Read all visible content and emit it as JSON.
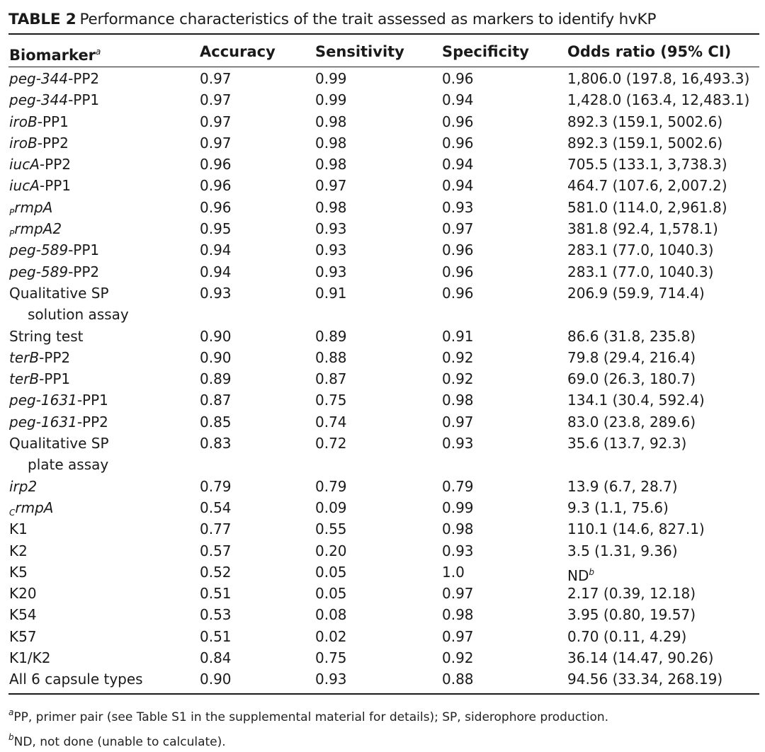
{
  "caption": {
    "label": "TABLE 2",
    "text": "Performance characteristics of the trait assessed as markers to identify hvKP"
  },
  "header": {
    "biomarker": "Biomarker",
    "biomarker_footnote": "a",
    "accuracy": "Accuracy",
    "sensitivity": "Sensitivity",
    "specificity": "Specificity",
    "odds_ratio": "Odds ratio (95% CI)"
  },
  "rows": [
    {
      "pre": "",
      "italic": "peg-344",
      "suffix": "-PP2",
      "cont": "",
      "accuracy": "0.97",
      "sensitivity": "0.99",
      "specificity": "0.96",
      "odds": "1,806.0 (197.8, 16,493.3)",
      "odds_fn": ""
    },
    {
      "pre": "",
      "italic": "peg-344",
      "suffix": "-PP1",
      "cont": "",
      "accuracy": "0.97",
      "sensitivity": "0.99",
      "specificity": "0.94",
      "odds": "1,428.0 (163.4, 12,483.1)",
      "odds_fn": ""
    },
    {
      "pre": "",
      "italic": "iroB",
      "suffix": "-PP1",
      "cont": "",
      "accuracy": "0.97",
      "sensitivity": "0.98",
      "specificity": "0.96",
      "odds": "892.3 (159.1, 5002.6)",
      "odds_fn": ""
    },
    {
      "pre": "",
      "italic": "iroB",
      "suffix": "-PP2",
      "cont": "",
      "accuracy": "0.97",
      "sensitivity": "0.98",
      "specificity": "0.96",
      "odds": "892.3 (159.1, 5002.6)",
      "odds_fn": ""
    },
    {
      "pre": "",
      "italic": "iucA",
      "suffix": "-PP2",
      "cont": "",
      "accuracy": "0.96",
      "sensitivity": "0.98",
      "specificity": "0.94",
      "odds": "705.5 (133.1, 3,738.3)",
      "odds_fn": ""
    },
    {
      "pre": "",
      "italic": "iucA",
      "suffix": "-PP1",
      "cont": "",
      "accuracy": "0.96",
      "sensitivity": "0.97",
      "specificity": "0.94",
      "odds": "464.7 (107.6, 2,007.2)",
      "odds_fn": ""
    },
    {
      "pre": "P",
      "italic": "rmpA",
      "suffix": "",
      "cont": "",
      "accuracy": "0.96",
      "sensitivity": "0.98",
      "specificity": "0.93",
      "odds": "581.0 (114.0, 2,961.8)",
      "odds_fn": ""
    },
    {
      "pre": "P",
      "italic": "rmpA2",
      "suffix": "",
      "cont": "",
      "accuracy": "0.95",
      "sensitivity": "0.93",
      "specificity": "0.97",
      "odds": "381.8 (92.4, 1,578.1)",
      "odds_fn": ""
    },
    {
      "pre": "",
      "italic": "peg-589",
      "suffix": "-PP1",
      "cont": "",
      "accuracy": "0.94",
      "sensitivity": "0.93",
      "specificity": "0.96",
      "odds": "283.1 (77.0, 1040.3)",
      "odds_fn": ""
    },
    {
      "pre": "",
      "italic": "peg-589",
      "suffix": "-PP2",
      "cont": "",
      "accuracy": "0.94",
      "sensitivity": "0.93",
      "specificity": "0.96",
      "odds": "283.1 (77.0, 1040.3)",
      "odds_fn": ""
    },
    {
      "pre": "",
      "italic": "",
      "suffix": "Qualitative SP",
      "cont": "solution assay",
      "accuracy": "0.93",
      "sensitivity": "0.91",
      "specificity": "0.96",
      "odds": "206.9 (59.9, 714.4)",
      "odds_fn": ""
    },
    {
      "pre": "",
      "italic": "",
      "suffix": "String test",
      "cont": "",
      "accuracy": "0.90",
      "sensitivity": "0.89",
      "specificity": "0.91",
      "odds": "86.6 (31.8, 235.8)",
      "odds_fn": ""
    },
    {
      "pre": "",
      "italic": "terB",
      "suffix": "-PP2",
      "cont": "",
      "accuracy": "0.90",
      "sensitivity": "0.88",
      "specificity": "0.92",
      "odds": "79.8 (29.4, 216.4)",
      "odds_fn": ""
    },
    {
      "pre": "",
      "italic": "terB",
      "suffix": "-PP1",
      "cont": "",
      "accuracy": "0.89",
      "sensitivity": "0.87",
      "specificity": "0.92",
      "odds": "69.0 (26.3, 180.7)",
      "odds_fn": ""
    },
    {
      "pre": "",
      "italic": "peg-1631",
      "suffix": "-PP1",
      "cont": "",
      "accuracy": "0.87",
      "sensitivity": "0.75",
      "specificity": "0.98",
      "odds": "134.1 (30.4, 592.4)",
      "odds_fn": ""
    },
    {
      "pre": "",
      "italic": "peg-1631",
      "suffix": "-PP2",
      "cont": "",
      "accuracy": "0.85",
      "sensitivity": "0.74",
      "specificity": "0.97",
      "odds": "83.0 (23.8, 289.6)",
      "odds_fn": ""
    },
    {
      "pre": "",
      "italic": "",
      "suffix": "Qualitative SP",
      "cont": "plate assay",
      "accuracy": "0.83",
      "sensitivity": "0.72",
      "specificity": "0.93",
      "odds": "35.6 (13.7, 92.3)",
      "odds_fn": ""
    },
    {
      "pre": "",
      "italic": "irp2",
      "suffix": "",
      "cont": "",
      "accuracy": "0.79",
      "sensitivity": "0.79",
      "specificity": "0.79",
      "odds": "13.9 (6.7, 28.7)",
      "odds_fn": ""
    },
    {
      "pre": "C",
      "italic": "rmpA",
      "suffix": "",
      "cont": "",
      "accuracy": "0.54",
      "sensitivity": "0.09",
      "specificity": "0.99",
      "odds": "9.3 (1.1, 75.6)",
      "odds_fn": ""
    },
    {
      "pre": "",
      "italic": "",
      "suffix": "K1",
      "cont": "",
      "accuracy": "0.77",
      "sensitivity": "0.55",
      "specificity": "0.98",
      "odds": "110.1 (14.6, 827.1)",
      "odds_fn": ""
    },
    {
      "pre": "",
      "italic": "",
      "suffix": "K2",
      "cont": "",
      "accuracy": "0.57",
      "sensitivity": "0.20",
      "specificity": "0.93",
      "odds": "3.5 (1.31, 9.36)",
      "odds_fn": ""
    },
    {
      "pre": "",
      "italic": "",
      "suffix": "K5",
      "cont": "",
      "accuracy": "0.52",
      "sensitivity": "0.05",
      "specificity": "1.0",
      "odds": "ND",
      "odds_fn": "b"
    },
    {
      "pre": "",
      "italic": "",
      "suffix": "K20",
      "cont": "",
      "accuracy": "0.51",
      "sensitivity": "0.05",
      "specificity": "0.97",
      "odds": "2.17 (0.39, 12.18)",
      "odds_fn": ""
    },
    {
      "pre": "",
      "italic": "",
      "suffix": "K54",
      "cont": "",
      "accuracy": "0.53",
      "sensitivity": "0.08",
      "specificity": "0.98",
      "odds": "3.95 (0.80, 19.57)",
      "odds_fn": ""
    },
    {
      "pre": "",
      "italic": "",
      "suffix": "K57",
      "cont": "",
      "accuracy": "0.51",
      "sensitivity": "0.02",
      "specificity": "0.97",
      "odds": "0.70 (0.11, 4.29)",
      "odds_fn": ""
    },
    {
      "pre": "",
      "italic": "",
      "suffix": "K1/K2",
      "cont": "",
      "accuracy": "0.84",
      "sensitivity": "0.75",
      "specificity": "0.92",
      "odds": "36.14 (14.47, 90.26)",
      "odds_fn": ""
    },
    {
      "pre": "",
      "italic": "",
      "suffix": "All 6 capsule types",
      "cont": "",
      "accuracy": "0.90",
      "sensitivity": "0.93",
      "specificity": "0.88",
      "odds": "94.56 (33.34, 268.19)",
      "odds_fn": ""
    }
  ],
  "footnotes": [
    {
      "mark": "a",
      "text": "PP, primer pair (see Table S1 in the supplemental material for details); SP, siderophore production."
    },
    {
      "mark": "b",
      "text": "ND, not done (unable to calculate)."
    }
  ]
}
